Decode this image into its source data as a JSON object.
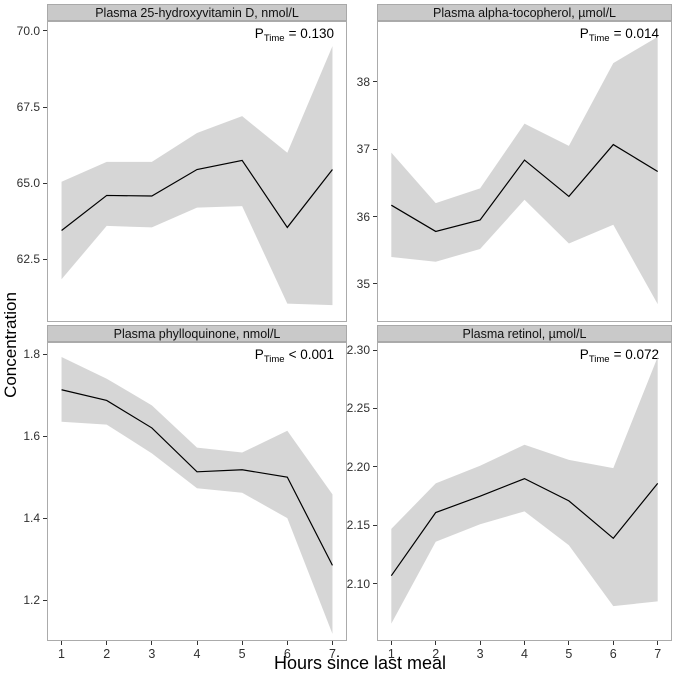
{
  "figure": {
    "y_axis_title": "Concentration",
    "x_axis_title": "Hours since last meal"
  },
  "style": {
    "ribbon_color": "#d6d6d6",
    "mean_line_color": "#000000",
    "strip_background": "#c9c9c9",
    "panel_border": "#ababab"
  },
  "chart_data": [
    {
      "type": "line",
      "panel": "top-left",
      "title": "Plasma 25-hydroxyvitamin D, nmol/L",
      "annotation": {
        "p": "P",
        "sub": "Time",
        "rel_value": "= 0.130"
      },
      "x": [
        1,
        2,
        3,
        4,
        5,
        6,
        7
      ],
      "series": [
        {
          "name": "mean",
          "values": [
            63.45,
            64.6,
            64.58,
            65.45,
            65.75,
            63.55,
            65.45
          ]
        },
        {
          "name": "ci_upper",
          "values": [
            65.05,
            65.7,
            65.7,
            66.65,
            67.2,
            66.0,
            69.5
          ]
        },
        {
          "name": "ci_lower",
          "values": [
            61.85,
            63.6,
            63.55,
            64.2,
            64.25,
            61.05,
            61.0
          ]
        }
      ],
      "xlim": [
        0.7,
        7.3
      ],
      "ylim": [
        60.48,
        70.29
      ],
      "yticks": [
        62.5,
        65.0,
        67.5,
        70.0
      ],
      "ytick_labels": [
        "62.5",
        "65.0",
        "67.5",
        "70.0"
      ],
      "xticks": [
        1,
        2,
        3,
        4,
        5,
        6,
        7
      ],
      "xtick_labels": [
        "1",
        "2",
        "3",
        "4",
        "5",
        "6",
        "7"
      ],
      "grid": false,
      "legend": "none"
    },
    {
      "type": "line",
      "panel": "top-right",
      "title": "Plasma alpha-tocopherol, µmol/L",
      "annotation": {
        "p": "P",
        "sub": "Time",
        "rel_value": "= 0.014"
      },
      "x": [
        1,
        2,
        3,
        4,
        5,
        6,
        7
      ],
      "series": [
        {
          "name": "mean",
          "values": [
            36.17,
            35.78,
            35.95,
            36.84,
            36.3,
            37.07,
            36.67
          ]
        },
        {
          "name": "ci_upper",
          "values": [
            36.95,
            36.2,
            36.42,
            37.38,
            37.05,
            38.28,
            38.67
          ]
        },
        {
          "name": "ci_lower",
          "values": [
            35.4,
            35.33,
            35.52,
            36.25,
            35.6,
            35.88,
            34.7
          ]
        }
      ],
      "xlim": [
        0.7,
        7.3
      ],
      "ylim": [
        34.45,
        38.89
      ],
      "yticks": [
        35,
        36,
        37,
        38
      ],
      "ytick_labels": [
        "35",
        "36",
        "37",
        "38"
      ],
      "xticks": [
        1,
        2,
        3,
        4,
        5,
        6,
        7
      ],
      "xtick_labels": [
        "1",
        "2",
        "3",
        "4",
        "5",
        "6",
        "7"
      ],
      "grid": false,
      "legend": "none"
    },
    {
      "type": "line",
      "panel": "bottom-left",
      "title": "Plasma phylloquinone, nmol/L",
      "annotation": {
        "p": "P",
        "sub": "Time",
        "rel_value": "< 0.001"
      },
      "x": [
        1,
        2,
        3,
        4,
        5,
        6,
        7
      ],
      "series": [
        {
          "name": "mean",
          "values": [
            1.713,
            1.687,
            1.62,
            1.513,
            1.518,
            1.5,
            1.285
          ]
        },
        {
          "name": "ci_upper",
          "values": [
            1.793,
            1.74,
            1.675,
            1.572,
            1.56,
            1.613,
            1.458
          ]
        },
        {
          "name": "ci_lower",
          "values": [
            1.635,
            1.628,
            1.558,
            1.473,
            1.462,
            1.4,
            1.118
          ]
        }
      ],
      "xlim": [
        0.7,
        7.3
      ],
      "ylim": [
        1.103,
        1.827
      ],
      "yticks": [
        1.2,
        1.4,
        1.6,
        1.8
      ],
      "ytick_labels": [
        "1.2",
        "1.4",
        "1.6",
        "1.8"
      ],
      "xticks": [
        1,
        2,
        3,
        4,
        5,
        6,
        7
      ],
      "xtick_labels": [
        "1",
        "2",
        "3",
        "4",
        "5",
        "6",
        "7"
      ],
      "grid": false,
      "legend": "none"
    },
    {
      "type": "line",
      "panel": "bottom-right",
      "title": "Plasma retinol, µmol/L",
      "annotation": {
        "p": "P",
        "sub": "Time",
        "rel_value": "= 0.072"
      },
      "x": [
        1,
        2,
        3,
        4,
        5,
        6,
        7
      ],
      "series": [
        {
          "name": "mean",
          "values": [
            2.107,
            2.161,
            2.175,
            2.19,
            2.171,
            2.139,
            2.186
          ]
        },
        {
          "name": "ci_upper",
          "values": [
            2.147,
            2.186,
            2.201,
            2.219,
            2.206,
            2.199,
            2.294
          ]
        },
        {
          "name": "ci_lower",
          "values": [
            2.066,
            2.136,
            2.151,
            2.162,
            2.133,
            2.081,
            2.085
          ]
        }
      ],
      "xlim": [
        0.7,
        7.3
      ],
      "ylim": [
        2.052,
        2.306
      ],
      "yticks": [
        2.1,
        2.15,
        2.2,
        2.25,
        2.3
      ],
      "ytick_labels": [
        "2.10",
        "2.15",
        "2.20",
        "2.25",
        "2.30"
      ],
      "xticks": [
        1,
        2,
        3,
        4,
        5,
        6,
        7
      ],
      "xtick_labels": [
        "1",
        "2",
        "3",
        "4",
        "5",
        "6",
        "7"
      ],
      "grid": false,
      "legend": "none"
    }
  ]
}
